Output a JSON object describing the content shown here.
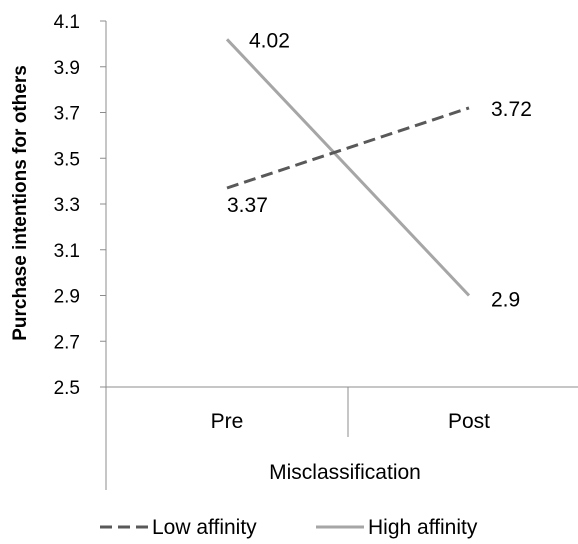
{
  "chart_data": {
    "type": "line",
    "ylabel": "Purchase intentions for others",
    "xlabel": "Misclassification",
    "categories": [
      "Pre",
      "Post"
    ],
    "ylim": [
      2.5,
      4.1
    ],
    "yticks": [
      "2.5",
      "2.7",
      "2.9",
      "3.1",
      "3.3",
      "3.5",
      "3.7",
      "3.9",
      "4.1"
    ],
    "legend_position": "bottom",
    "series": [
      {
        "name": "Low affinity",
        "values": [
          3.37,
          3.72
        ],
        "labels": [
          "3.37",
          "3.72"
        ],
        "color": "#595959",
        "style": "dashed"
      },
      {
        "name": "High affinity",
        "values": [
          4.02,
          2.9
        ],
        "labels": [
          "4.02",
          "2.9"
        ],
        "color": "#a6a6a6",
        "style": "solid"
      }
    ]
  }
}
